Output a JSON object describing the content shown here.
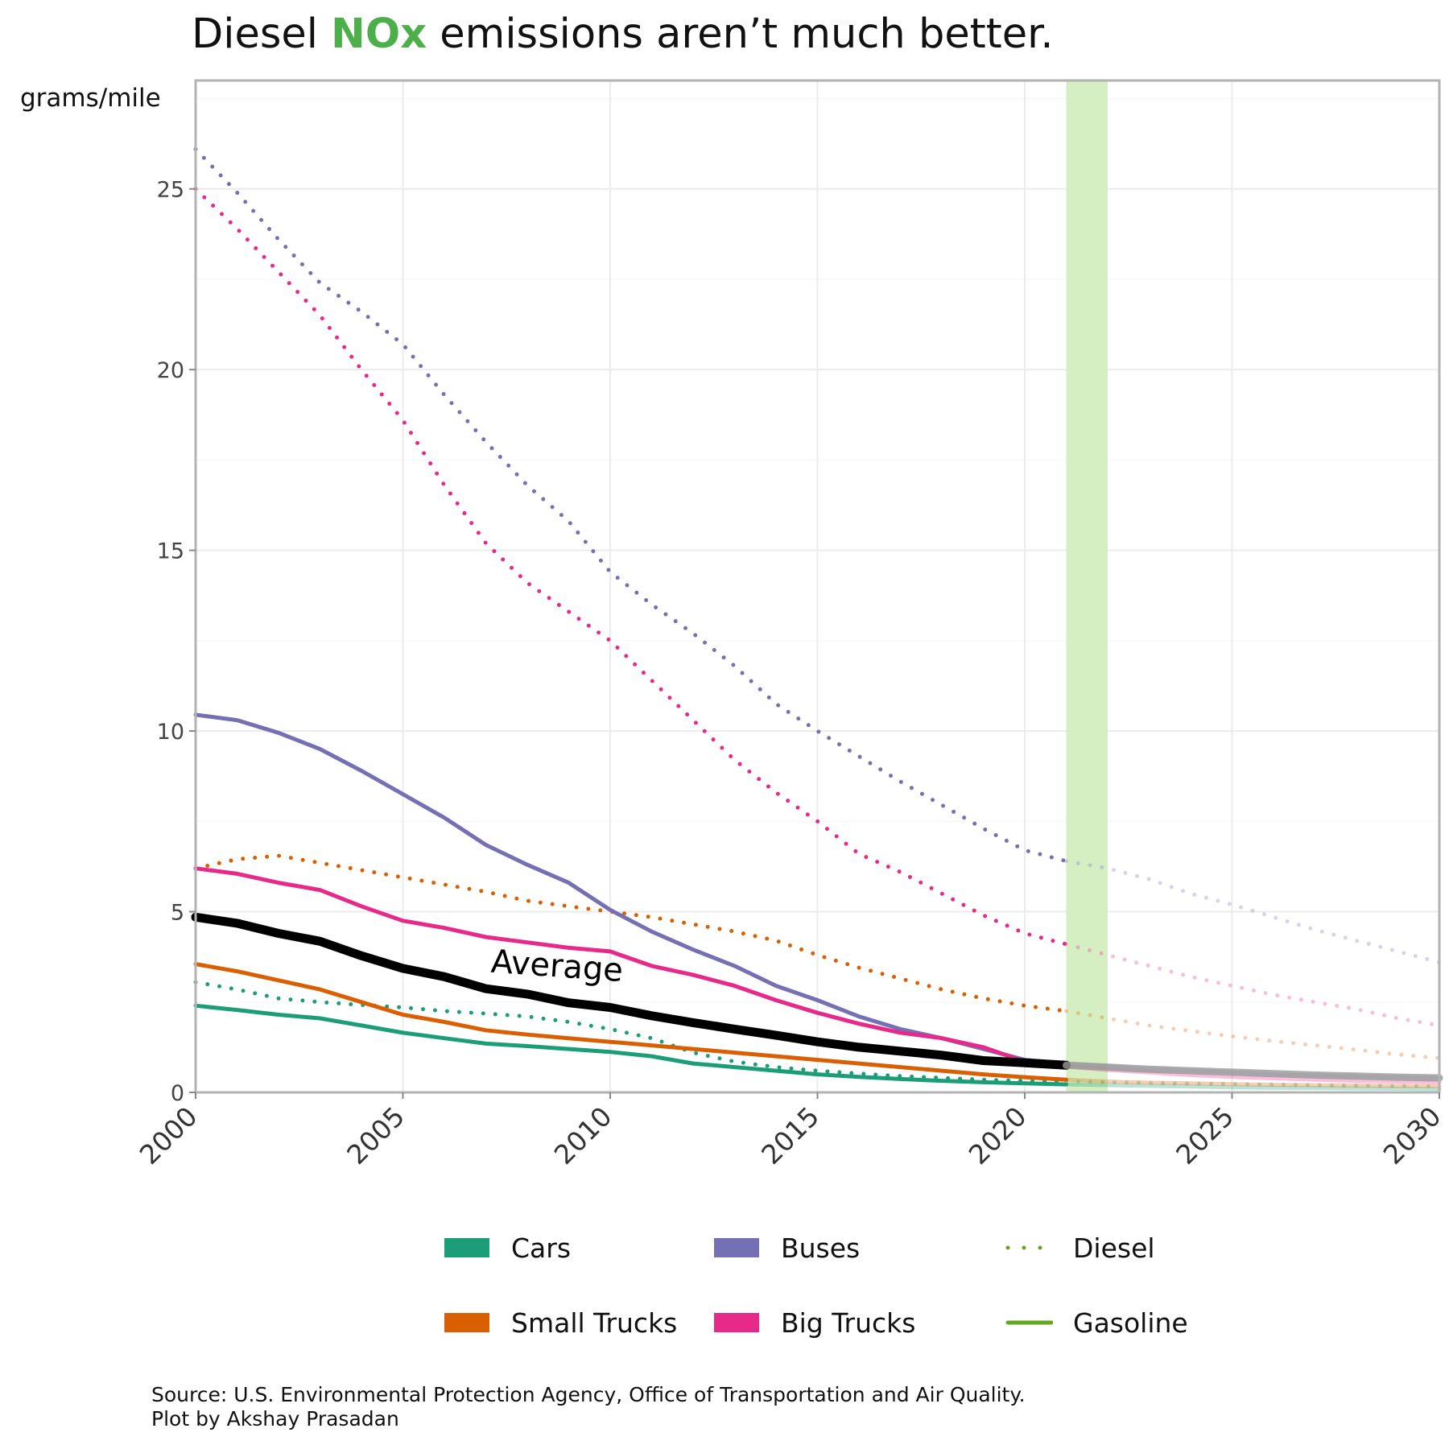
{
  "title": {
    "prefix": "Diesel ",
    "highlight": "NOx",
    "suffix": " emissions aren’t much better."
  },
  "colors": {
    "cars": "#1b9e77",
    "small_trucks": "#d95f02",
    "buses": "#7570b3",
    "big_trucks": "#e7298a",
    "diesel_key": "#66a61e",
    "gasoline_key": "#66a61e",
    "average": "#000000",
    "highlight": "#4daf4a",
    "band": "#d5efc2"
  },
  "legend": {
    "items": [
      {
        "label": "Cars",
        "kind": "fill",
        "color": "#1b9e77"
      },
      {
        "label": "Buses",
        "kind": "fill",
        "color": "#7570b3"
      },
      {
        "label": "Diesel",
        "kind": "dotted",
        "color": "#66a61e"
      },
      {
        "label": "Small Trucks",
        "kind": "fill",
        "color": "#d95f02"
      },
      {
        "label": "Big Trucks",
        "kind": "fill",
        "color": "#e7298a"
      },
      {
        "label": "Gasoline",
        "kind": "solid",
        "color": "#66a61e"
      }
    ]
  },
  "caption": {
    "line1": "Source: U.S. Environmental Protection Agency, Office of Transportation and Air Quality.",
    "line2": "Plot by Akshay Prasadan"
  },
  "chart_data": {
    "type": "line",
    "ylabel": "grams/mile",
    "xlim": [
      2000,
      2030
    ],
    "ylim": [
      0,
      28
    ],
    "x_ticks": [
      2000,
      2005,
      2010,
      2015,
      2020,
      2025,
      2030
    ],
    "y_ticks": [
      0,
      5,
      10,
      15,
      20,
      25
    ],
    "grid": true,
    "projection_band": [
      2021,
      2022
    ],
    "projection_start": 2022,
    "annotation": {
      "text": "Average",
      "x": 2008.7,
      "y": 3.2
    },
    "x": [
      2000,
      2001,
      2002,
      2003,
      2004,
      2005,
      2006,
      2007,
      2008,
      2009,
      2010,
      2011,
      2012,
      2013,
      2014,
      2015,
      2016,
      2017,
      2018,
      2019,
      2020,
      2021,
      2022,
      2023,
      2024,
      2025,
      2026,
      2027,
      2028,
      2029,
      2030
    ],
    "series": [
      {
        "name": "Cars",
        "fuel": "Gasoline",
        "color": "#1b9e77",
        "values": [
          2.4,
          2.28,
          2.15,
          2.05,
          1.85,
          1.65,
          1.5,
          1.35,
          1.28,
          1.2,
          1.12,
          1.0,
          0.8,
          0.7,
          0.6,
          0.5,
          0.43,
          0.37,
          0.32,
          0.28,
          0.25,
          0.22,
          0.2,
          0.18,
          0.16,
          0.14,
          0.13,
          0.12,
          0.11,
          0.1,
          0.09
        ]
      },
      {
        "name": "Cars",
        "fuel": "Diesel",
        "color": "#1b9e77",
        "values": [
          3.05,
          2.85,
          2.6,
          2.5,
          2.42,
          2.35,
          2.25,
          2.18,
          2.1,
          1.95,
          1.75,
          1.5,
          1.1,
          0.85,
          0.7,
          0.6,
          0.52,
          0.45,
          0.4,
          0.35,
          0.32,
          0.3,
          0.28,
          0.26,
          0.24,
          0.23,
          0.22,
          0.2,
          0.19,
          0.18,
          0.17
        ]
      },
      {
        "name": "Small Trucks",
        "fuel": "Gasoline",
        "color": "#d95f02",
        "values": [
          3.55,
          3.35,
          3.1,
          2.85,
          2.5,
          2.15,
          1.95,
          1.72,
          1.6,
          1.5,
          1.4,
          1.3,
          1.2,
          1.1,
          1.0,
          0.9,
          0.8,
          0.7,
          0.6,
          0.5,
          0.42,
          0.35,
          0.3,
          0.27,
          0.25,
          0.23,
          0.21,
          0.2,
          0.19,
          0.18,
          0.17
        ]
      },
      {
        "name": "Small Trucks",
        "fuel": "Diesel",
        "color": "#d95f02",
        "values": [
          6.2,
          6.45,
          6.55,
          6.35,
          6.15,
          5.95,
          5.75,
          5.55,
          5.3,
          5.15,
          5.0,
          4.85,
          4.65,
          4.45,
          4.2,
          3.8,
          3.45,
          3.15,
          2.85,
          2.6,
          2.4,
          2.25,
          2.05,
          1.85,
          1.7,
          1.55,
          1.42,
          1.3,
          1.18,
          1.05,
          0.95
        ]
      },
      {
        "name": "Buses",
        "fuel": "Gasoline",
        "color": "#7570b3",
        "values": [
          10.45,
          10.3,
          9.95,
          9.5,
          8.9,
          8.25,
          7.6,
          6.85,
          6.3,
          5.8,
          5.05,
          4.45,
          3.95,
          3.5,
          2.95,
          2.55,
          2.1,
          1.75,
          1.5,
          1.2,
          0.9,
          0.8,
          0.72,
          0.65,
          0.6,
          0.55,
          0.5,
          0.47,
          0.44,
          0.42,
          0.4
        ]
      },
      {
        "name": "Buses",
        "fuel": "Diesel",
        "color": "#7570b3",
        "values": [
          26.1,
          24.9,
          23.6,
          22.4,
          21.6,
          20.7,
          19.3,
          18.0,
          16.8,
          15.8,
          14.4,
          13.5,
          12.7,
          11.8,
          10.75,
          10.0,
          9.3,
          8.6,
          7.95,
          7.3,
          6.7,
          6.4,
          6.2,
          5.9,
          5.5,
          5.2,
          4.85,
          4.5,
          4.2,
          3.9,
          3.6
        ]
      },
      {
        "name": "Big Trucks",
        "fuel": "Gasoline",
        "color": "#e7298a",
        "values": [
          6.2,
          6.05,
          5.8,
          5.6,
          5.15,
          4.75,
          4.55,
          4.3,
          4.15,
          4.0,
          3.9,
          3.5,
          3.25,
          2.95,
          2.55,
          2.2,
          1.9,
          1.65,
          1.5,
          1.25,
          0.85,
          0.72,
          0.62,
          0.55,
          0.48,
          0.43,
          0.39,
          0.35,
          0.32,
          0.3,
          0.28
        ]
      },
      {
        "name": "Big Trucks",
        "fuel": "Diesel",
        "color": "#e7298a",
        "values": [
          25.0,
          23.9,
          22.7,
          21.5,
          20.0,
          18.6,
          16.8,
          15.2,
          14.1,
          13.3,
          12.5,
          11.4,
          10.3,
          9.2,
          8.3,
          7.5,
          6.6,
          6.1,
          5.5,
          4.9,
          4.4,
          4.1,
          3.8,
          3.5,
          3.2,
          2.95,
          2.7,
          2.5,
          2.3,
          2.05,
          1.85
        ]
      },
      {
        "name": "Average",
        "fuel": "All",
        "color": "#000000",
        "values": [
          4.85,
          4.68,
          4.4,
          4.18,
          3.78,
          3.43,
          3.2,
          2.87,
          2.72,
          2.48,
          2.35,
          2.12,
          1.93,
          1.75,
          1.58,
          1.4,
          1.25,
          1.14,
          1.03,
          0.88,
          0.82,
          0.75,
          0.7,
          0.64,
          0.6,
          0.56,
          0.52,
          0.48,
          0.45,
          0.42,
          0.4
        ]
      }
    ]
  }
}
